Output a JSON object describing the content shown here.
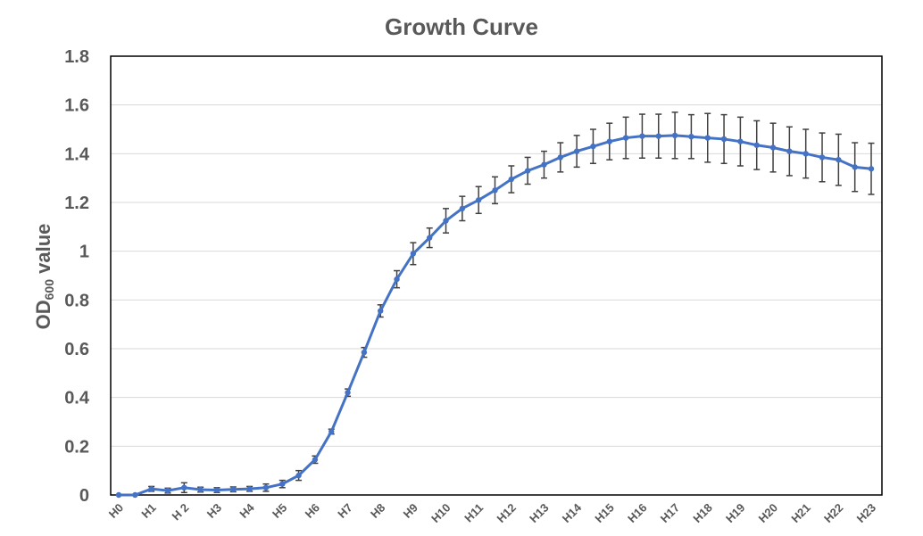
{
  "chart_data": {
    "type": "line",
    "title": "Growth Curve",
    "ylabel_main": "OD",
    "ylabel_sub": "600",
    "ylabel_tail": " value",
    "xlabel": "",
    "ylim": [
      0,
      1.8
    ],
    "yticks": [
      "0",
      "0.2",
      "0.4",
      "0.6",
      "0.8",
      "1",
      "1.2",
      "1.4",
      "1.6",
      "1.8"
    ],
    "grid": true,
    "legend": "none",
    "x_tick_labels": [
      "H0",
      "H1",
      "H 2",
      "H3",
      "H4",
      "H5",
      "H6",
      "H7",
      "H8",
      "H9",
      "H10",
      "H11",
      "H12",
      "H13",
      "H14",
      "H15",
      "H16",
      "H17",
      "H18",
      "H19",
      "H20",
      "H21",
      "H22",
      "H23"
    ],
    "series": [
      {
        "color": "#4472C4",
        "values": [
          0.0,
          0.0,
          0.025,
          0.018,
          0.03,
          0.022,
          0.02,
          0.023,
          0.025,
          0.03,
          0.045,
          0.08,
          0.145,
          0.26,
          0.42,
          0.585,
          0.755,
          0.885,
          0.99,
          1.055,
          1.125,
          1.175,
          1.21,
          1.25,
          1.295,
          1.33,
          1.355,
          1.385,
          1.41,
          1.43,
          1.45,
          1.465,
          1.472,
          1.472,
          1.475,
          1.47,
          1.465,
          1.46,
          1.45,
          1.435,
          1.425,
          1.41,
          1.4,
          1.385,
          1.375,
          1.345,
          1.338
        ],
        "errors": [
          0.0,
          0.0,
          0.01,
          0.01,
          0.02,
          0.01,
          0.01,
          0.01,
          0.01,
          0.015,
          0.015,
          0.02,
          0.015,
          0.01,
          0.015,
          0.02,
          0.025,
          0.035,
          0.045,
          0.04,
          0.05,
          0.05,
          0.055,
          0.055,
          0.055,
          0.055,
          0.055,
          0.06,
          0.065,
          0.07,
          0.075,
          0.085,
          0.09,
          0.09,
          0.095,
          0.09,
          0.1,
          0.1,
          0.1,
          0.1,
          0.1,
          0.1,
          0.1,
          0.1,
          0.105,
          0.1,
          0.105
        ]
      }
    ],
    "colors": {
      "line": "#4472C4",
      "grid": "#d9d9d9",
      "axis_text": "#595959",
      "plot_border": "#000000",
      "error_bar": "#404040"
    }
  }
}
